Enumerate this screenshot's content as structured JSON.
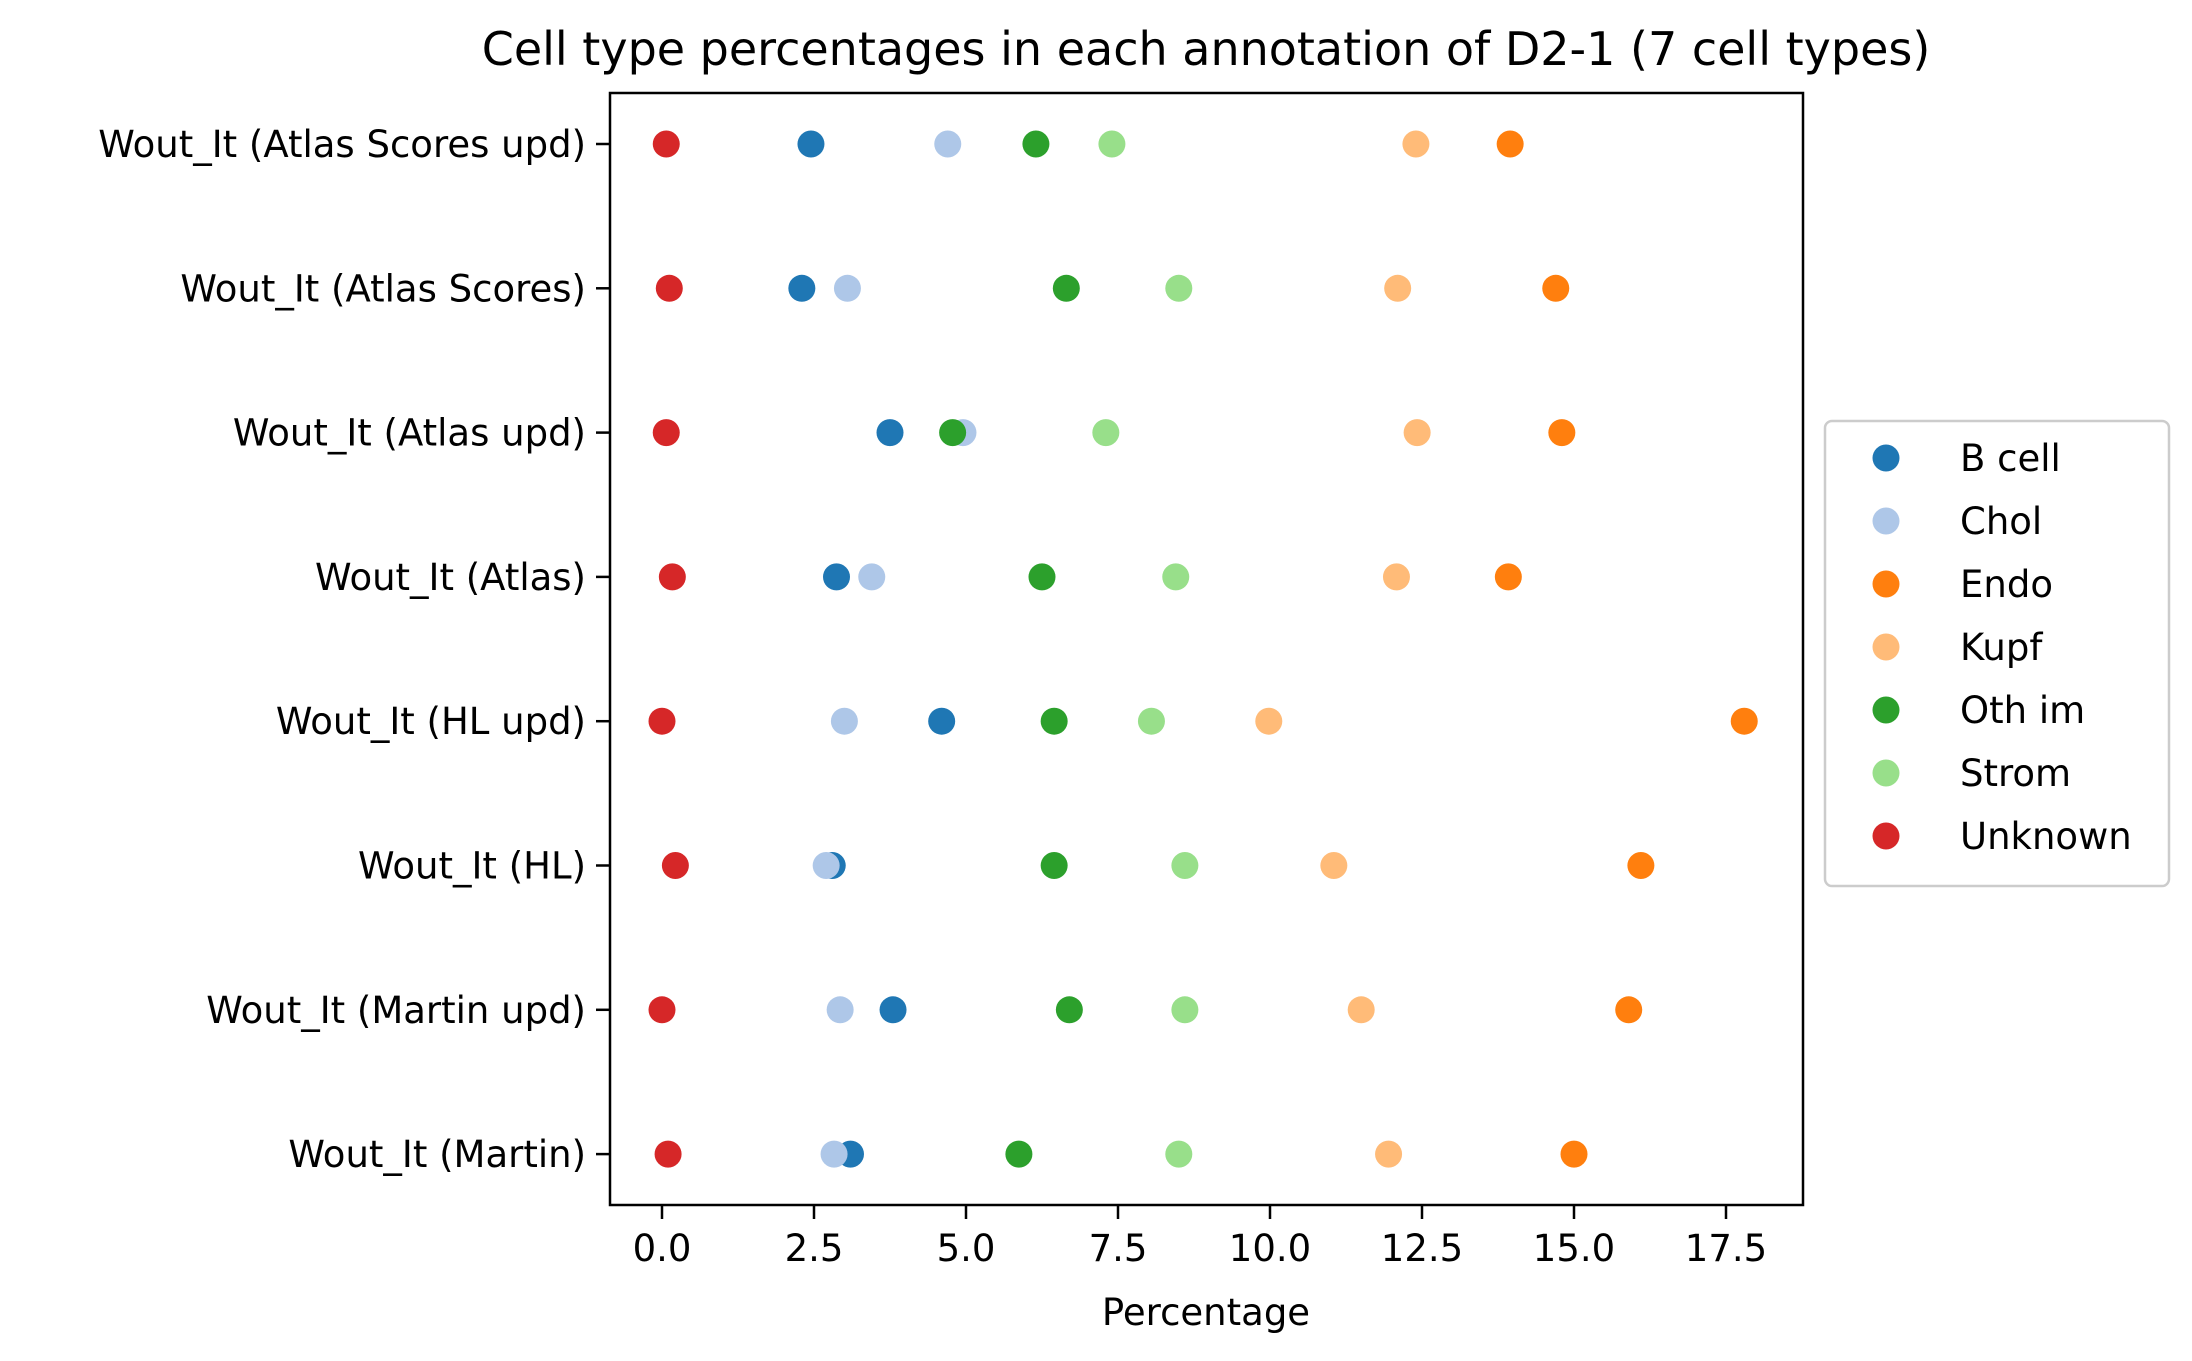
{
  "chart_data": {
    "type": "scatter",
    "title": "Cell type percentages in each annotation of D2-1 (7 cell types)",
    "xlabel": "Percentage",
    "ylabel": "",
    "xlim": [
      -0.9,
      18.7
    ],
    "xticks": [
      0.0,
      2.5,
      5.0,
      7.5,
      10.0,
      12.5,
      15.0,
      17.5
    ],
    "xtick_labels": [
      "0.0",
      "2.5",
      "5.0",
      "7.5",
      "10.0",
      "12.5",
      "15.0",
      "17.5"
    ],
    "categories": [
      "Wout_It (Atlas Scores upd)",
      "Wout_It (Atlas Scores)",
      "Wout_It (Atlas upd)",
      "Wout_It (Atlas)",
      "Wout_It (HL upd)",
      "Wout_It (HL)",
      "Wout_It (Martin upd)",
      "Wout_It (Martin)"
    ],
    "grid": false,
    "legend_position": "right",
    "series": [
      {
        "name": "B cell",
        "color": "#1f77b4",
        "values": [
          2.45,
          2.3,
          3.75,
          2.87,
          4.6,
          2.8,
          3.8,
          3.1
        ]
      },
      {
        "name": "Chol",
        "color": "#aec7e8",
        "values": [
          4.7,
          3.05,
          4.95,
          3.45,
          3.0,
          2.7,
          2.93,
          2.83
        ]
      },
      {
        "name": "Endo",
        "color": "#ff7f0e",
        "values": [
          13.95,
          14.7,
          14.8,
          13.92,
          17.8,
          16.1,
          15.9,
          15.0
        ]
      },
      {
        "name": "Kupf",
        "color": "#ffbb78",
        "values": [
          12.4,
          12.1,
          12.42,
          12.08,
          9.98,
          11.05,
          11.5,
          11.95
        ]
      },
      {
        "name": "Oth im",
        "color": "#2ca02c",
        "values": [
          6.15,
          6.65,
          4.78,
          6.25,
          6.45,
          6.45,
          6.7,
          5.87
        ]
      },
      {
        "name": "Strom",
        "color": "#98df8a",
        "values": [
          7.4,
          8.5,
          7.3,
          8.45,
          8.05,
          8.6,
          8.6,
          8.5
        ]
      },
      {
        "name": "Unknown",
        "color": "#d62728",
        "values": [
          0.07,
          0.12,
          0.07,
          0.17,
          0.0,
          0.22,
          0.0,
          0.1
        ]
      }
    ]
  }
}
